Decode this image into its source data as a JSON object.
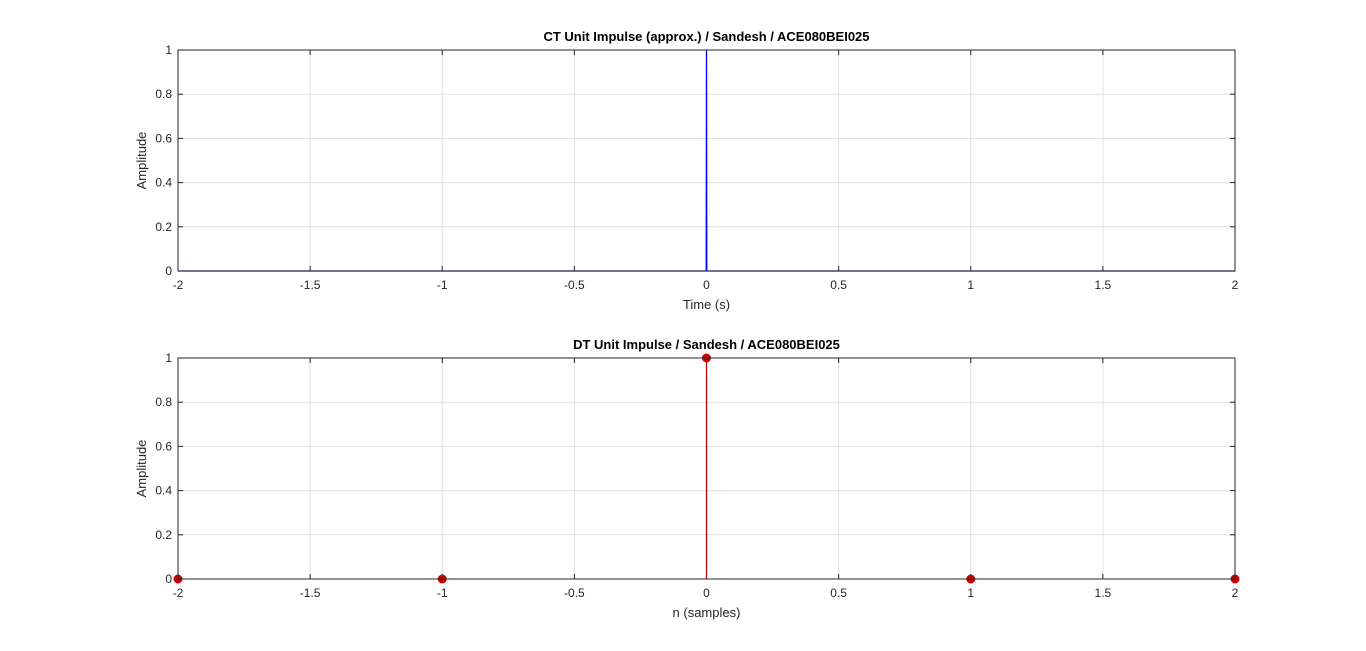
{
  "chart_data": [
    {
      "type": "line",
      "title": "CT Unit Impulse (approx.) / Sandesh / ACE080BEI025",
      "xlabel": "Time (s)",
      "ylabel": "Amplitude",
      "xlim": [
        -2,
        2
      ],
      "ylim": [
        0,
        1
      ],
      "xticks": [
        -2,
        -1.5,
        -1,
        -0.5,
        0,
        0.5,
        1,
        1.5,
        2
      ],
      "xtick_labels": [
        "-2",
        "-1.5",
        "-1",
        "-0.5",
        "0",
        "0.5",
        "1",
        "1.5",
        "2"
      ],
      "yticks": [
        0,
        0.2,
        0.4,
        0.6,
        0.8,
        1
      ],
      "ytick_labels": [
        "0",
        "0.2",
        "0.4",
        "0.6",
        "0.8",
        "1"
      ],
      "grid": true,
      "color": "#0000ff",
      "series": [
        {
          "x": [
            -2,
            -0.001,
            0,
            0.001,
            2
          ],
          "y": [
            0,
            0,
            1,
            0,
            0
          ]
        }
      ]
    },
    {
      "type": "stem",
      "title": "DT Unit Impulse / Sandesh / ACE080BEI025",
      "xlabel": "n (samples)",
      "ylabel": "Amplitude",
      "xlim": [
        -2,
        2
      ],
      "ylim": [
        0,
        1
      ],
      "xticks": [
        -2,
        -1.5,
        -1,
        -0.5,
        0,
        0.5,
        1,
        1.5,
        2
      ],
      "xtick_labels": [
        "-2",
        "-1.5",
        "-1",
        "-0.5",
        "0",
        "0.5",
        "1",
        "1.5",
        "2"
      ],
      "yticks": [
        0,
        0.2,
        0.4,
        0.6,
        0.8,
        1
      ],
      "ytick_labels": [
        "0",
        "0.2",
        "0.4",
        "0.6",
        "0.8",
        "1"
      ],
      "grid": true,
      "color": "#cc0000",
      "series": [
        {
          "x": [
            -2,
            -1,
            0,
            1,
            2
          ],
          "y": [
            0,
            0,
            1,
            0,
            0
          ]
        }
      ]
    }
  ]
}
